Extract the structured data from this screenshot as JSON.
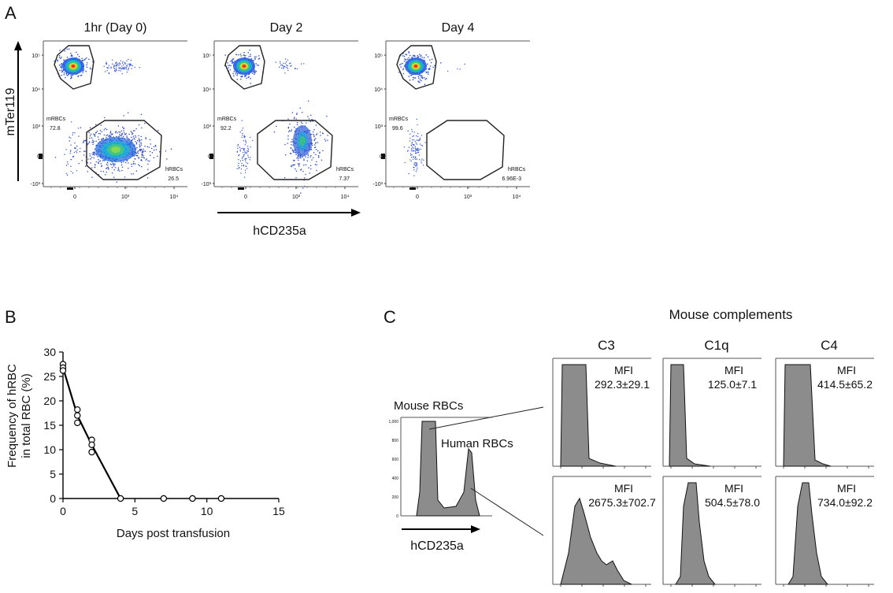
{
  "chart_data": [
    {
      "panel": "A",
      "type": "scatter",
      "title_axis_x": "hCD235a",
      "title_axis_y": "mTer119",
      "x_ticks": [
        "0",
        "10³",
        "10⁴"
      ],
      "y_ticks": [
        "10⁵",
        "10⁴",
        "10³",
        "0",
        "-10³"
      ],
      "plots": [
        {
          "title": "1hr (Day 0)",
          "mRBC_label": "mRBCs",
          "mRBC_value": "72.8",
          "hRBC_label": "hRBCs",
          "hRBC_value": "26.5"
        },
        {
          "title": "Day 2",
          "mRBC_label": "mRBCs",
          "mRBC_value": "92.2",
          "hRBC_label": "hRBCs",
          "hRBC_value": "7.37"
        },
        {
          "title": "Day 4",
          "mRBC_label": "mRBCs",
          "mRBC_value": "99.6",
          "hRBC_label": "hRBCs",
          "hRBC_value": "6.96E-3"
        }
      ]
    },
    {
      "panel": "B",
      "type": "line",
      "xlabel": "Days post transfusion",
      "ylabel_line1": "Frequency of hRBC",
      "ylabel_line2": "in total RBC (%)",
      "xlim": [
        0,
        15
      ],
      "ylim": [
        0,
        30
      ],
      "x_ticks": [
        0,
        5,
        10,
        15
      ],
      "y_ticks": [
        0,
        5,
        10,
        15,
        20,
        25,
        30
      ],
      "points": [
        {
          "x": 0,
          "y": 27.5
        },
        {
          "x": 0,
          "y": 26.8
        },
        {
          "x": 0,
          "y": 26.2
        },
        {
          "x": 1,
          "y": 18.2
        },
        {
          "x": 1,
          "y": 17.0
        },
        {
          "x": 1,
          "y": 15.5
        },
        {
          "x": 2,
          "y": 12.0
        },
        {
          "x": 2,
          "y": 11.0
        },
        {
          "x": 2,
          "y": 9.5
        },
        {
          "x": 4,
          "y": 0
        },
        {
          "x": 7,
          "y": 0
        },
        {
          "x": 9,
          "y": 0
        },
        {
          "x": 11,
          "y": 0
        }
      ],
      "mean_line": [
        {
          "x": 0,
          "y": 26.8
        },
        {
          "x": 1,
          "y": 17.0
        },
        {
          "x": 2,
          "y": 11.0
        },
        {
          "x": 4,
          "y": 0
        }
      ]
    },
    {
      "panel": "C",
      "type": "histogram",
      "title": "Mouse complements",
      "overview": {
        "mouse_label": "Mouse RBCs",
        "human_label": "Human RBCs",
        "xlabel": "hCD235a",
        "y_ticks": [
          "1,000",
          "800",
          "600",
          "400",
          "200",
          "0"
        ]
      },
      "columns": [
        "C3",
        "C1q",
        "C4"
      ],
      "mfi_label": "MFI",
      "rows": [
        {
          "population": "Mouse RBCs",
          "mfi": [
            "292.3±29.1",
            "125.0±7.1",
            "414.5±65.2"
          ]
        },
        {
          "population": "Human RBCs",
          "mfi": [
            "2675.3±702.7",
            "504.5±78.0",
            "734.0±92.2"
          ]
        }
      ]
    }
  ],
  "panel_letters": [
    "A",
    "B",
    "C"
  ]
}
